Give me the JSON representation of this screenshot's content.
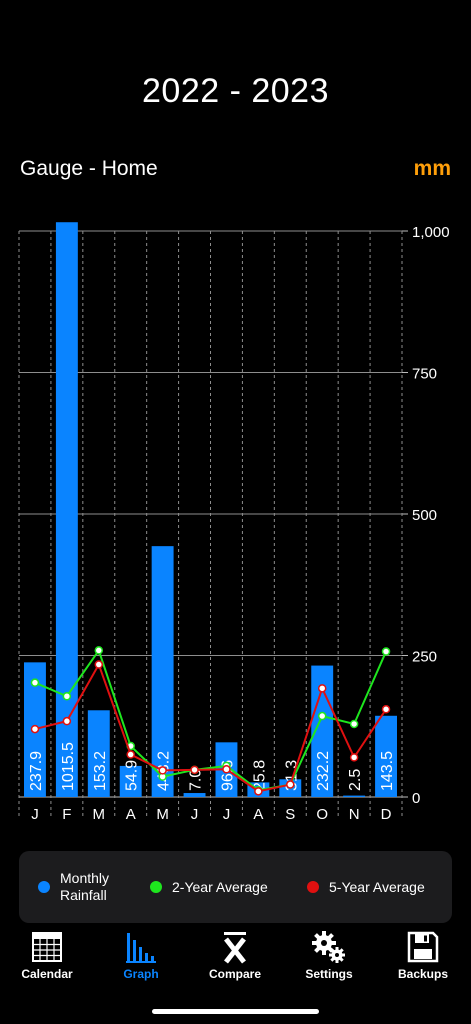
{
  "header": {
    "title": "2022 - 2023",
    "gauge_label": "Gauge - Home",
    "unit": "mm"
  },
  "colors": {
    "bar": "#0a84ff",
    "avg2": "#1ee61e",
    "avg5": "#e01010",
    "unit": "#ff9f0a",
    "grid": "#8e8e8e"
  },
  "chart_data": {
    "type": "bar",
    "categories": [
      "J",
      "F",
      "M",
      "A",
      "M",
      "J",
      "J",
      "A",
      "S",
      "O",
      "N",
      "D"
    ],
    "ylim": [
      0,
      1000
    ],
    "yticks": [
      0,
      250,
      500,
      750,
      1000
    ],
    "ytick_labels": [
      "0",
      "250",
      "500",
      "750",
      "1,000"
    ],
    "grid": true,
    "legend_position": "bottom",
    "series": [
      {
        "name": "Monthly Rainfall",
        "type": "bar",
        "values": [
          237.9,
          1015.5,
          153.2,
          54.9,
          443.2,
          7.0,
          96.6,
          25.8,
          31.3,
          232.2,
          2.5,
          143.5
        ],
        "labels": [
          "237.9",
          "1015.5",
          "153.2",
          "54.9",
          "443.2",
          "7.0",
          "96.6",
          "25.8",
          "31.3",
          "232.2",
          "2.5",
          "143.5"
        ]
      },
      {
        "name": "2-Year Average",
        "type": "line",
        "values": [
          202,
          178,
          259,
          90,
          36,
          48,
          55,
          12,
          22,
          143,
          129,
          257
        ]
      },
      {
        "name": "5-Year Average",
        "type": "line",
        "values": [
          120,
          134,
          234,
          75,
          47,
          48,
          49,
          10,
          22,
          192,
          70,
          155
        ]
      }
    ]
  },
  "legend": {
    "items": [
      {
        "line1": "Monthly",
        "line2": "Rainfall"
      },
      {
        "line1": "2-Year Average",
        "line2": ""
      },
      {
        "line1": "5-Year Average",
        "line2": ""
      }
    ]
  },
  "tabbar": {
    "tabs": [
      {
        "label": "Calendar",
        "icon": "calendar-icon"
      },
      {
        "label": "Graph",
        "icon": "bar-graph-icon"
      },
      {
        "label": "Compare",
        "icon": "x-bar-icon"
      },
      {
        "label": "Settings",
        "icon": "gears-icon"
      },
      {
        "label": "Backups",
        "icon": "floppy-disk-icon"
      }
    ],
    "active": "Graph"
  }
}
